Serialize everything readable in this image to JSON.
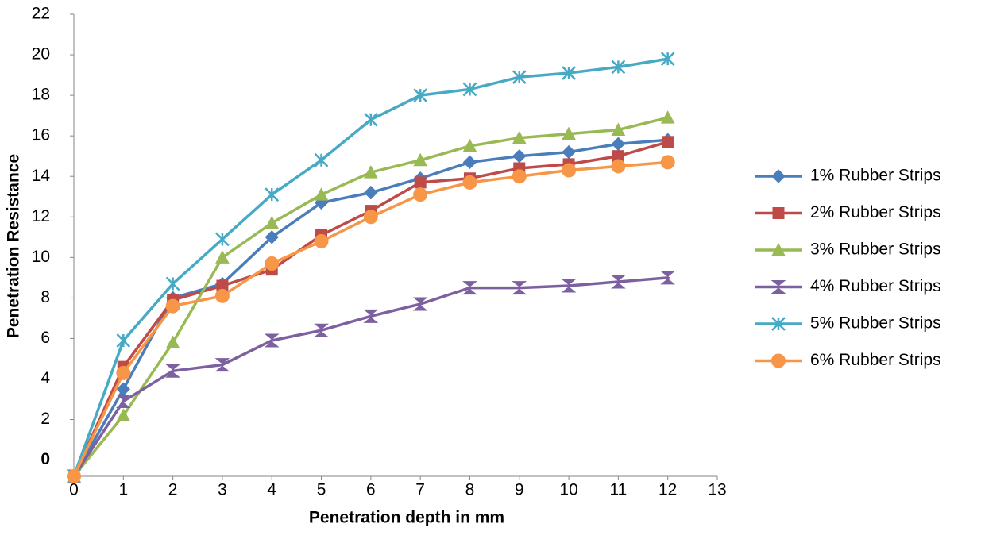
{
  "chart_data": {
    "type": "line",
    "x_label": "Penetration depth in mm",
    "y_label": "Penetration Resistance",
    "x": [
      0,
      1,
      2,
      3,
      4,
      5,
      6,
      7,
      8,
      9,
      10,
      11,
      12
    ],
    "series": [
      {
        "name": "1% Rubber Strips",
        "color": "#4a7ebb",
        "marker": "diamond",
        "values": [
          -0.8,
          3.5,
          8.0,
          8.7,
          11.0,
          12.7,
          13.2,
          13.9,
          14.7,
          15.0,
          15.2,
          15.6,
          15.8
        ]
      },
      {
        "name": "2% Rubber Strips",
        "color": "#be4b48",
        "marker": "square",
        "values": [
          -0.8,
          4.6,
          7.9,
          8.6,
          9.4,
          11.1,
          12.3,
          13.7,
          13.9,
          14.4,
          14.6,
          15.0,
          15.7
        ]
      },
      {
        "name": "3% Rubber Strips",
        "color": "#98b954",
        "marker": "triangle",
        "values": [
          -0.8,
          2.2,
          5.8,
          10.0,
          11.7,
          13.1,
          14.2,
          14.8,
          15.5,
          15.9,
          16.1,
          16.3,
          16.9
        ]
      },
      {
        "name": "4% Rubber Strips",
        "color": "#7d60a0",
        "marker": "hourglass",
        "values": [
          -0.8,
          2.9,
          4.4,
          4.7,
          5.9,
          6.4,
          7.1,
          7.7,
          8.5,
          8.5,
          8.6,
          8.8,
          9.0
        ]
      },
      {
        "name": "5% Rubber Strips",
        "color": "#46aac5",
        "marker": "star",
        "values": [
          -0.8,
          5.9,
          8.7,
          10.9,
          13.1,
          14.8,
          16.8,
          18.0,
          18.3,
          18.9,
          19.1,
          19.4,
          19.8
        ]
      },
      {
        "name": "6% Rubber Strips",
        "color": "#f79646",
        "marker": "circle",
        "values": [
          -0.8,
          4.3,
          7.6,
          8.1,
          9.7,
          10.8,
          12.0,
          13.1,
          13.7,
          14.0,
          14.3,
          14.5,
          14.7
        ]
      }
    ],
    "xlim": [
      0,
      13
    ],
    "xticks": [
      0,
      1,
      2,
      3,
      4,
      5,
      6,
      7,
      8,
      9,
      10,
      11,
      12,
      13
    ],
    "ylim": [
      -0.8,
      22
    ],
    "yticks": [
      0,
      2,
      4,
      6,
      8,
      10,
      12,
      14,
      16,
      18,
      20,
      22
    ],
    "grid": false,
    "legend": "right"
  }
}
